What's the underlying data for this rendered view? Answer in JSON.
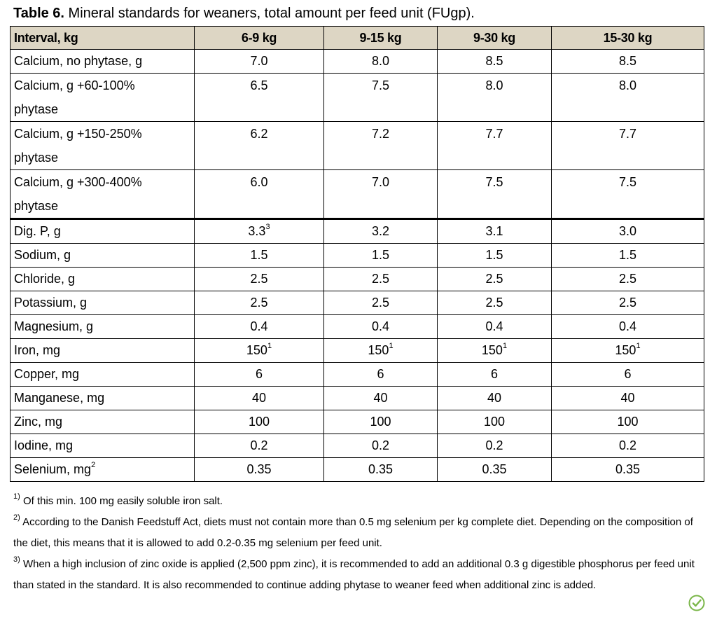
{
  "caption": {
    "label": "Table 6.",
    "text": " Mineral standards for weaners, total amount per feed unit (FUgp)."
  },
  "table": {
    "headers": [
      "Interval, kg",
      "6-9 kg",
      "9-15 kg",
      "9-30 kg",
      "15-30 kg"
    ],
    "rows": [
      {
        "label": "Calcium, no phytase, g",
        "values": [
          "7.0",
          "8.0",
          "8.5",
          "8.5"
        ]
      },
      {
        "label_line1": "Calcium, g +60-100%",
        "label_line2": "phytase",
        "values": [
          "6.5",
          "7.5",
          "8.0",
          "8.0"
        ]
      },
      {
        "label_line1": "Calcium, g +150-250%",
        "label_line2": "phytase",
        "values": [
          "6.2",
          "7.2",
          "7.7",
          "7.7"
        ]
      },
      {
        "label_line1": "Calcium, g +300-400%",
        "label_line2": "phytase",
        "values": [
          "6.0",
          "7.0",
          "7.5",
          "7.5"
        ]
      },
      {
        "label": "Dig. P, g",
        "values": [
          "3.3",
          "3.2",
          "3.1",
          "3.0"
        ],
        "first_sup": "3"
      },
      {
        "label": "Sodium, g",
        "values": [
          "1.5",
          "1.5",
          "1.5",
          "1.5"
        ]
      },
      {
        "label": "Chloride, g",
        "values": [
          "2.5",
          "2.5",
          "2.5",
          "2.5"
        ]
      },
      {
        "label": "Potassium, g",
        "values": [
          "2.5",
          "2.5",
          "2.5",
          "2.5"
        ]
      },
      {
        "label": "Magnesium, g",
        "values": [
          "0.4",
          "0.4",
          "0.4",
          "0.4"
        ]
      },
      {
        "label": "Iron, mg",
        "values": [
          "150",
          "150",
          "150",
          "150"
        ],
        "sup": "1"
      },
      {
        "label": "Copper, mg",
        "values": [
          "6",
          "6",
          "6",
          "6"
        ]
      },
      {
        "label": "Manganese, mg",
        "values": [
          "40",
          "40",
          "40",
          "40"
        ]
      },
      {
        "label": "Zinc, mg",
        "values": [
          "100",
          "100",
          "100",
          "100"
        ]
      },
      {
        "label": "Iodine, mg",
        "values": [
          "0.2",
          "0.2",
          "0.2",
          "0.2"
        ]
      },
      {
        "label": "Selenium, mg",
        "label_sup": "2",
        "values": [
          "0.35",
          "0.35",
          "0.35",
          "0.35"
        ]
      }
    ]
  },
  "footnotes": [
    {
      "mark": "1)",
      "text": " Of this min. 100 mg easily soluble iron salt."
    },
    {
      "mark": "2)",
      "text": " According to the Danish Feedstuff Act, diets must not contain more than 0.5 mg selenium per kg complete diet. Depending on the composition of the diet, this means that it is allowed to add 0.2-0.35 mg selenium per feed unit."
    },
    {
      "mark": "3)",
      "text": " When a high inclusion of zinc oxide is applied (2,500 ppm zinc), it is recommended to add an additional 0.3 g digestible phosphorus per feed unit than stated in the standard. It is also recommended to continue adding phytase to weaner feed when additional zinc is added."
    }
  ],
  "colors": {
    "header_bg": "#ddd6c4",
    "logo": "#7ab648"
  },
  "icons": {
    "logo": "leaf-check-icon"
  }
}
